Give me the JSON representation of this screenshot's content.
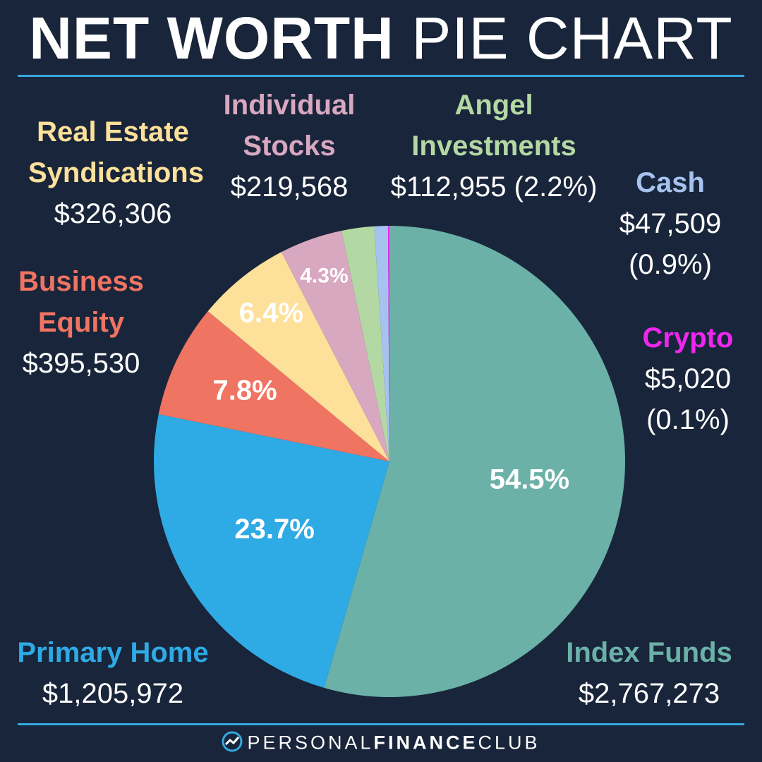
{
  "title": {
    "bold": "NET WORTH",
    "light": "PIE CHART"
  },
  "footer": {
    "personal": "PERSONAL",
    "finance": "FINANCE",
    "club": "CLUB"
  },
  "colors": {
    "background": "#19253a",
    "rule": "#35a8e0",
    "index_funds": "#6bb1a8",
    "primary_home": "#2eaae5",
    "business_equity": "#ef7462",
    "real_estate": "#fde09a",
    "stocks": "#d8a7c0",
    "angel": "#b4d8a4",
    "cash": "#a6c3f0",
    "crypto": "#ee27ee"
  },
  "chart_data": {
    "type": "pie",
    "title": "NET WORTH PIE CHART",
    "slices": [
      {
        "key": "index_funds",
        "name": "Index Funds",
        "value": 2767273,
        "amount": "$2,767,273",
        "percent": 54.5,
        "pct_label": "54.5%",
        "color": "#6bb1a8"
      },
      {
        "key": "primary_home",
        "name": "Primary Home",
        "value": 1205972,
        "amount": "$1,205,972",
        "percent": 23.7,
        "pct_label": "23.7%",
        "color": "#2eaae5"
      },
      {
        "key": "business_equity",
        "name": "Business Equity",
        "value": 395530,
        "amount": "$395,530",
        "percent": 7.8,
        "pct_label": "7.8%",
        "color": "#ef7462"
      },
      {
        "key": "real_estate",
        "name": "Real Estate Syndications",
        "value": 326306,
        "amount": "$326,306",
        "percent": 6.4,
        "pct_label": "6.4%",
        "color": "#fde09a"
      },
      {
        "key": "stocks",
        "name": "Individual Stocks",
        "value": 219568,
        "amount": "$219,568",
        "percent": 4.3,
        "pct_label": "4.3%",
        "color": "#d8a7c0"
      },
      {
        "key": "angel",
        "name": "Angel Investments",
        "value": 112955,
        "amount": "$112,955 (2.2%)",
        "percent": 2.2,
        "pct_label": "",
        "color": "#b4d8a4"
      },
      {
        "key": "cash",
        "name": "Cash",
        "value": 47509,
        "amount": "$47,509",
        "percent": 0.9,
        "pct_label": "(0.9%)",
        "color": "#a6c3f0"
      },
      {
        "key": "crypto",
        "name": "Crypto",
        "value": 5020,
        "amount": "$5,020",
        "percent": 0.1,
        "pct_label": "(0.1%)",
        "color": "#ee27ee"
      }
    ],
    "start_angle": "12 o'clock",
    "direction": "clockwise"
  },
  "labels": {
    "index_funds": {
      "name": "Index Funds",
      "amount": "$2,767,273"
    },
    "primary_home": {
      "name": "Primary Home",
      "amount": "$1,205,972"
    },
    "business_equity": {
      "name1": "Business",
      "name2": "Equity",
      "amount": "$395,530"
    },
    "real_estate": {
      "name1": "Real Estate",
      "name2": "Syndications",
      "amount": "$326,306"
    },
    "stocks": {
      "name1": "Individual",
      "name2": "Stocks",
      "amount": "$219,568"
    },
    "angel": {
      "name1": "Angel",
      "name2": "Investments",
      "amount": "$112,955 (2.2%)"
    },
    "cash": {
      "name": "Cash",
      "amount": "$47,509",
      "pct": "(0.9%)"
    },
    "crypto": {
      "name": "Crypto",
      "amount": "$5,020",
      "pct": "(0.1%)"
    }
  }
}
